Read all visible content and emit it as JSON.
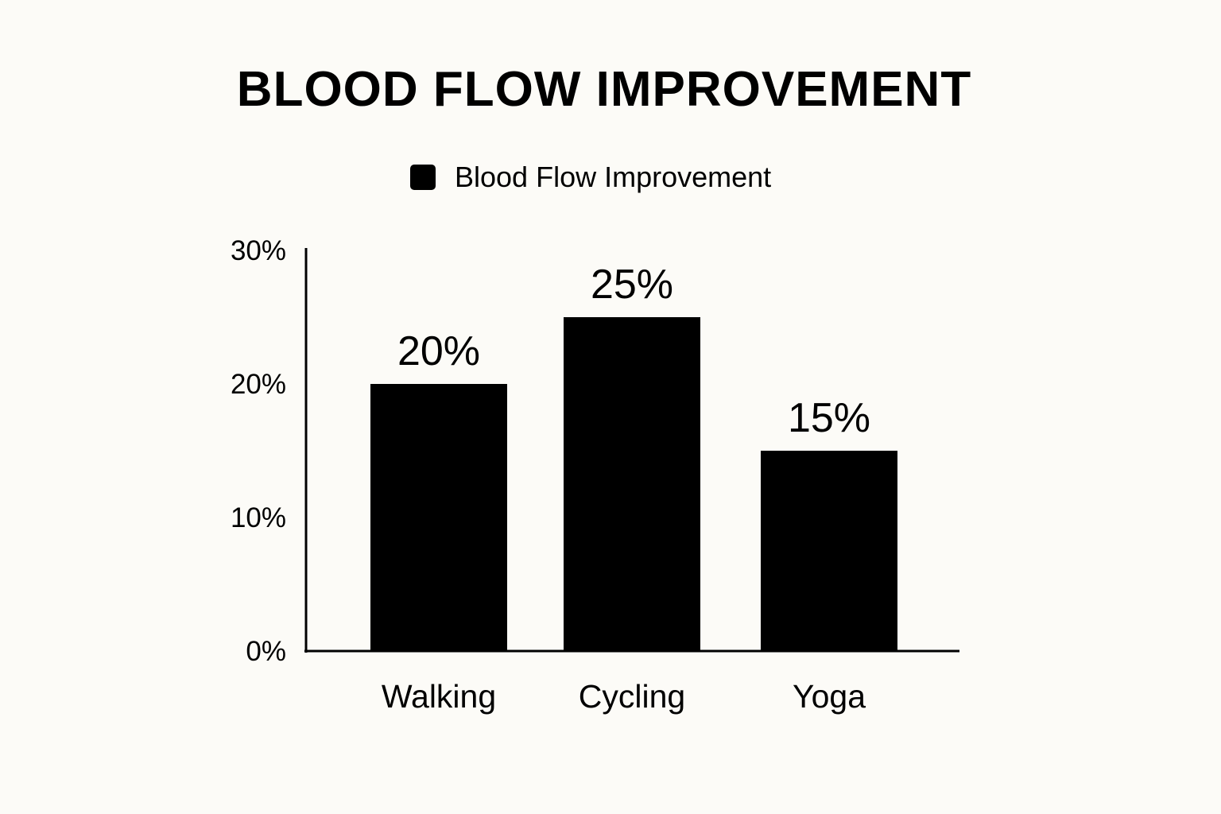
{
  "chart_data": {
    "type": "bar",
    "title": "BLOOD FLOW IMPROVEMENT",
    "legend": {
      "position": "top-center",
      "entries": [
        {
          "label": "Blood Flow Improvement",
          "color": "#000000"
        }
      ]
    },
    "categories": [
      "Walking",
      "Cycling",
      "Yoga"
    ],
    "series": [
      {
        "name": "Blood Flow Improvement",
        "values": [
          20,
          25,
          15
        ],
        "color": "#000000"
      }
    ],
    "data_labels": [
      "20%",
      "25%",
      "15%"
    ],
    "y_ticks": [
      {
        "value": 0,
        "label": "0%"
      },
      {
        "value": 10,
        "label": "10%"
      },
      {
        "value": 20,
        "label": "20%"
      },
      {
        "value": 30,
        "label": "30%"
      }
    ],
    "ylim": [
      0,
      30
    ],
    "xlabel": "",
    "ylabel": "",
    "grid": false
  },
  "colors": {
    "background": "#fcfbf7",
    "bar": "#000000",
    "text": "#000000"
  }
}
